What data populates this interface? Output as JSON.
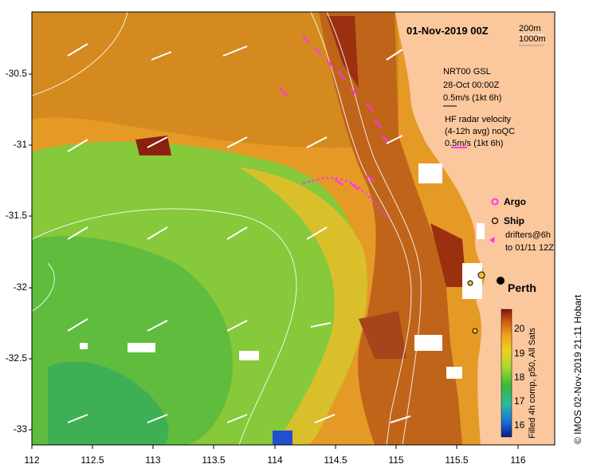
{
  "map": {
    "title": "01-Nov-2019 00Z",
    "depth_contours": [
      "200m",
      "1000m"
    ],
    "nrt_label": [
      "NRT00 GSL",
      "28-Oct 00:00Z",
      "0.5m/s (1kt 6h)"
    ],
    "hf_label": [
      "HF radar velocity",
      "(4-12h avg) noQC",
      "0.5m/s (1kt 6h)"
    ],
    "legend": {
      "argo": "Argo",
      "ship": "Ship",
      "drifters": [
        "drifters@6h",
        "to 01/11 12Z"
      ]
    },
    "city": "Perth",
    "lat_ticks": [
      "-30.5",
      "-31",
      "-31.5",
      "-32",
      "-32.5",
      "-33"
    ],
    "lon_ticks": [
      "112",
      "112.5",
      "113",
      "113.5",
      "114",
      "114.5",
      "115",
      "115.5",
      "116"
    ],
    "colorbar": {
      "ticks": [
        "20",
        "19",
        "18",
        "17",
        "16"
      ],
      "range": [
        15.5,
        20.8
      ],
      "title": "Filled 4h comp, p50, All Sats"
    },
    "credit": "© IMOS 02-Nov-2019 21:11 Hobart",
    "colors": {
      "land": "#fbc79c",
      "warm": "#c86a12",
      "cool": "#7cc833",
      "argo": "#ff33ff",
      "wind_arrow": "#ffffff"
    }
  }
}
